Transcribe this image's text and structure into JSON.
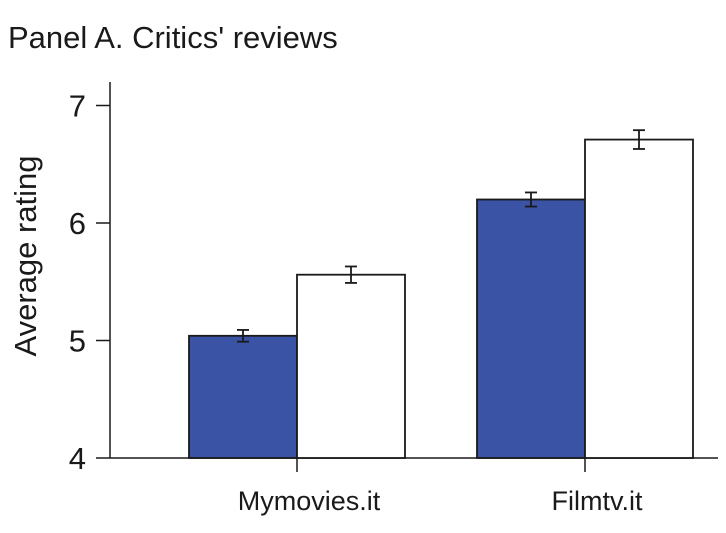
{
  "chart_data": {
    "type": "bar",
    "title": "Panel A. Critics' reviews",
    "xlabel": "",
    "ylabel": "Average rating",
    "ylim": [
      4,
      7.2
    ],
    "yticks": [
      4,
      5,
      6,
      7
    ],
    "categories": [
      "Mymovies.it",
      "Filmtv.it"
    ],
    "series": [
      {
        "values": [
          5.04,
          6.2
        ],
        "errors": [
          0.05,
          0.06
        ],
        "fill": "#3a53a4"
      },
      {
        "values": [
          5.56,
          6.71
        ],
        "errors": [
          0.07,
          0.08
        ],
        "fill": "#ffffff"
      }
    ],
    "grid": false,
    "legend": "none"
  }
}
